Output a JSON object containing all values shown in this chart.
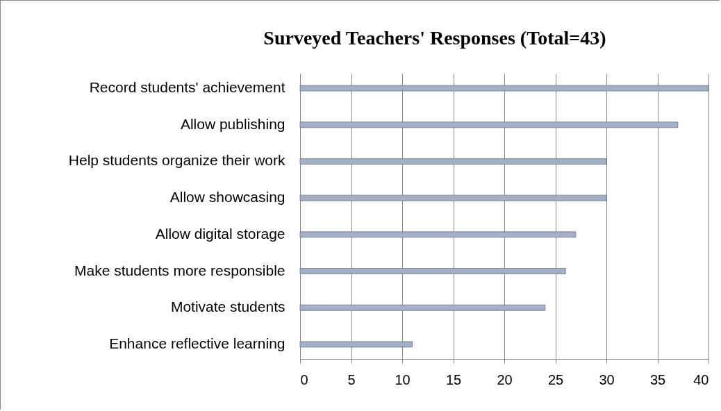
{
  "chart_data": {
    "type": "bar",
    "orientation": "horizontal",
    "title": "Surveyed Teachers' Responses (Total=43)",
    "categories": [
      "Record students' achievement",
      "Allow publishing",
      "Help students organize their work",
      "Allow showcasing",
      "Allow digital storage",
      "Make students more responsible",
      "Motivate students",
      "Enhance reflective learning"
    ],
    "values": [
      40,
      37,
      30,
      30,
      27,
      26,
      24,
      11
    ],
    "color": "#a3b0c6",
    "xlim": [
      0,
      40
    ],
    "xticks": [
      0,
      5,
      10,
      15,
      20,
      25,
      30,
      35,
      40
    ],
    "grid": "x"
  }
}
